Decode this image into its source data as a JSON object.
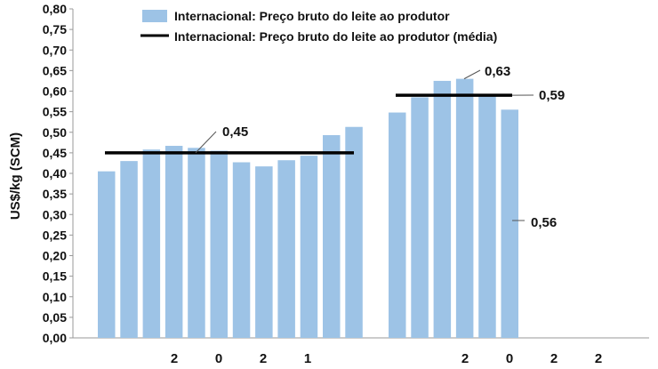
{
  "chart_data": {
    "type": "bar",
    "ylabel": "US$/kg (SCM)",
    "ylim": [
      0,
      0.8
    ],
    "ytick_step": 0.05,
    "grid": false,
    "legend_placement": "top-center",
    "series": [
      {
        "name": "Internacional: Preço bruto do leite ao produtor",
        "color": "#9dc3e6",
        "groups": [
          [
            0.405,
            0.43,
            0.458,
            0.467,
            0.462,
            0.455,
            0.427,
            0.417,
            0.432,
            0.443,
            0.493,
            0.513
          ],
          [
            0.548,
            0.585,
            0.625,
            0.63,
            0.59,
            0.555
          ]
        ]
      },
      {
        "name": "Internacional: Preço bruto do leite ao produtor (média)",
        "color": "#000000",
        "group_values": [
          0.45,
          0.59
        ]
      }
    ],
    "x_tick_labels": [
      "2",
      "0",
      "2",
      "1",
      "2",
      "0",
      "2",
      "2"
    ],
    "annotations": [
      "0,45",
      "0,63",
      "0,59",
      "0,56"
    ]
  }
}
